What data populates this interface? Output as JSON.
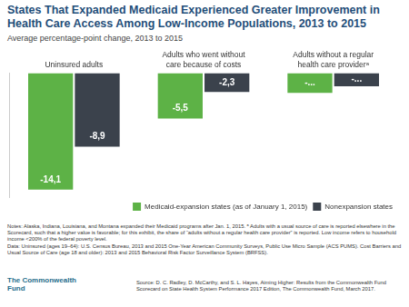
{
  "chart_data": {
    "type": "bar",
    "title": "States That Expanded Medicaid Experienced Greater Improvement in Health Care Access Among Low-Income Populations, 2013 to 2015",
    "subtitle": "Average percentage-point change, 2013 to 2015",
    "categories": [
      "Uninsured adults",
      "Adults who went without care because of costs",
      "Adults without a regular health care providerᵃ"
    ],
    "series": [
      {
        "name": "Medicaid-expansion states (as of January 1, 2015)",
        "color": "#5db246",
        "values": [
          -14.1,
          -5.5,
          -2.4
        ],
        "value_labels": [
          "-14,1",
          "-5,5",
          "-..."
        ]
      },
      {
        "name": "Nonexpansion states",
        "color": "#3b424c",
        "values": [
          -8.9,
          -2.3,
          -1.6
        ],
        "value_labels": [
          "-8,9",
          "-2,3",
          "-..."
        ]
      }
    ],
    "ylim": [
      -15,
      0
    ],
    "tick_labels": "x",
    "grid": false,
    "data_labels": true,
    "legend": "bottom right"
  },
  "notes": "Notes: Alaska, Indiana, Louisiana, and Montana expanded their Medicaid programs after Jan. 1, 2015. ᵃ Adults with a usual source of care is reported elsewhere in the Scorecard, such that a higher value is favorable; for this exhibit, the share of “adults without a regular health care provider” is reported. Low income refers to household income <200% of the federal poverty level.",
  "data": "Data: Uninsured (ages 19–64): U.S. Census Bureau, 2013 and 2015 One-Year American Community Surveys, Public Use Micro Sample (ACS PUMS). Cost Barriers and Usual Source of Care (age 18 and older): 2013 and 2015 Behavioral Risk Factor Surveillance System (BRFSS).",
  "source": "Source: D. C. Radley, D. McCarthy, and S. L. Hayes, Aiming Higher: Results from the Commonwealth Fund Scorecard on State Health System Performance 2017 Edition, The Commonwealth Fund, March 2017.",
  "logo": "The Commonwealth Fund"
}
